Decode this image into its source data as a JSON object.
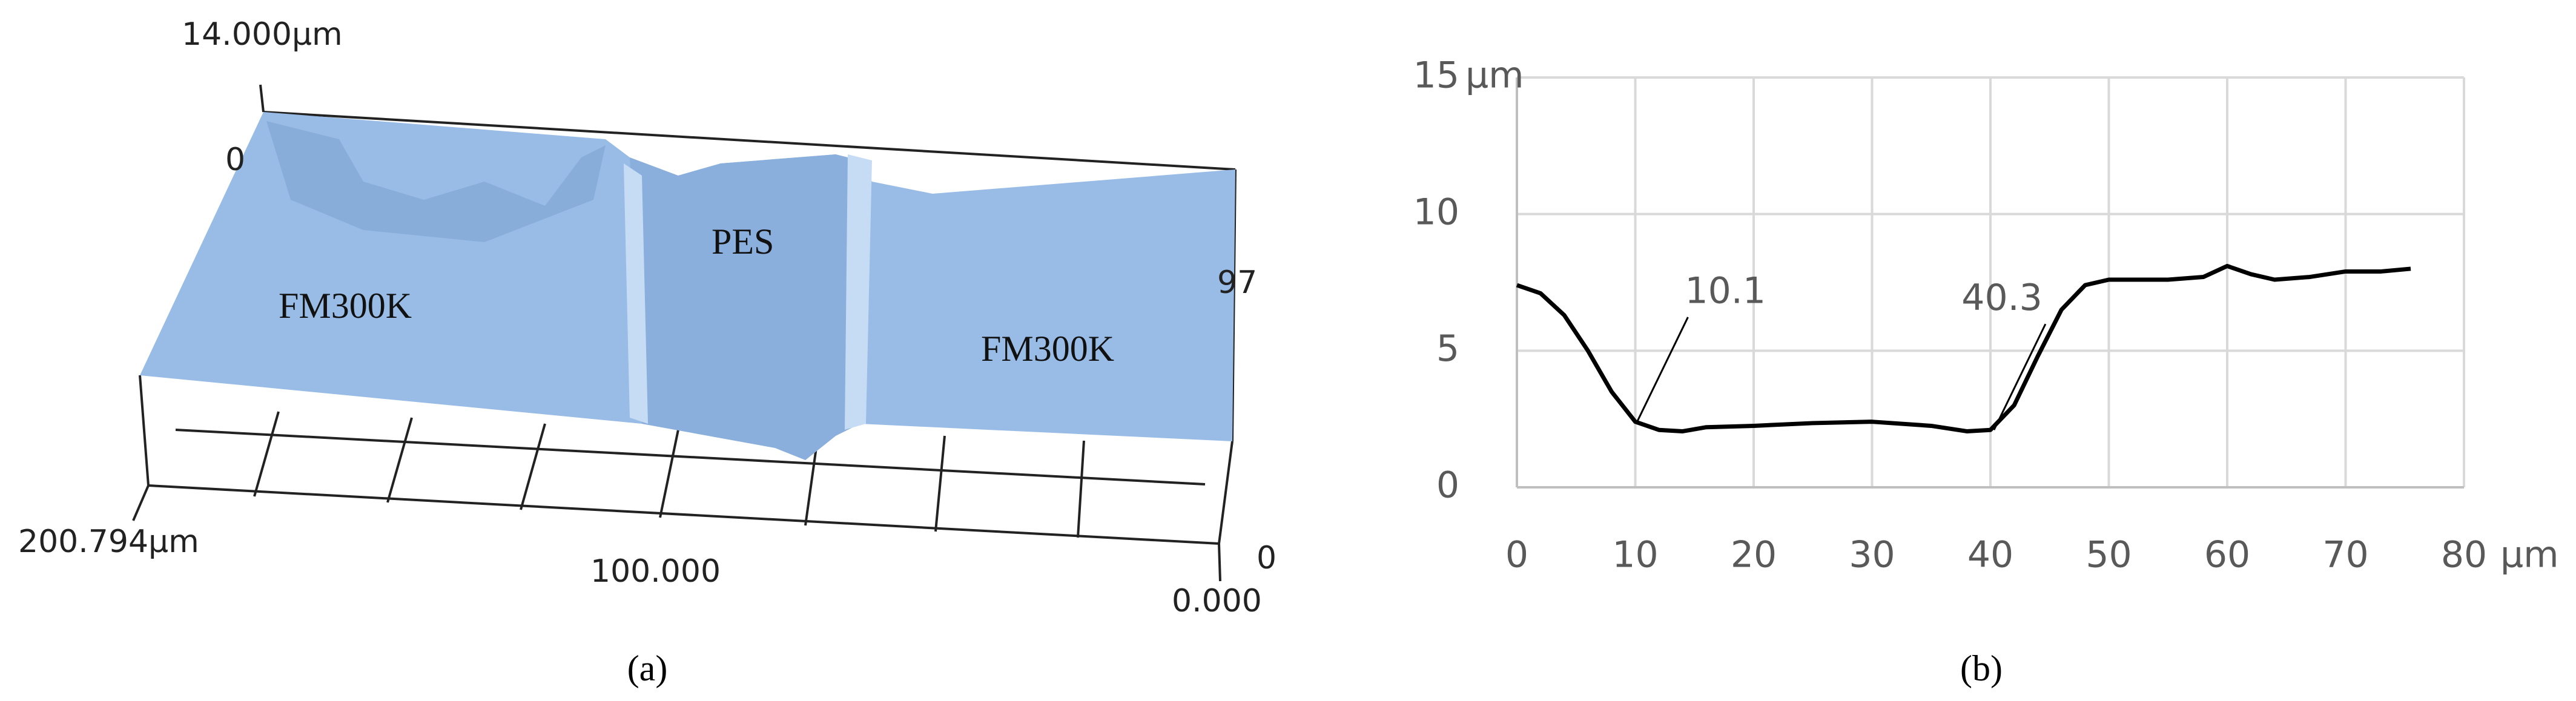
{
  "panel_a": {
    "z_max_label": "14.000μm",
    "z_zero_label": "0",
    "right_label": "97",
    "region_left": "FM300K",
    "region_center": "PES",
    "region_right": "FM300K",
    "x_max_label": "200.794μm",
    "x_mid_label": "100.000",
    "x_zero_label": "0.000",
    "y_zero_label": "0",
    "panel_label": "(a)"
  },
  "chart_data": {
    "type": "line",
    "panel_label": "(b)",
    "y_unit": "μm",
    "x_unit": "μm",
    "color": "#000000",
    "x": [
      0,
      2,
      4,
      6,
      8,
      10,
      12,
      14,
      16,
      20,
      25,
      30,
      35,
      38,
      40,
      42,
      44,
      46,
      48,
      50,
      55,
      58,
      60,
      62,
      64,
      67,
      70,
      73,
      75.5
    ],
    "values": [
      7.4,
      7.1,
      6.3,
      5.0,
      3.5,
      2.4,
      2.1,
      2.05,
      2.2,
      2.25,
      2.35,
      2.4,
      2.25,
      2.05,
      2.1,
      3.0,
      4.8,
      6.5,
      7.4,
      7.6,
      7.6,
      7.7,
      8.1,
      7.8,
      7.6,
      7.7,
      7.9,
      7.9,
      8.0
    ],
    "xlim": [
      0,
      80
    ],
    "xticks": [
      0,
      10,
      20,
      30,
      40,
      50,
      60,
      70,
      80
    ],
    "ylim": [
      0,
      15
    ],
    "yticks": [
      0,
      5,
      10,
      15
    ],
    "grid": true,
    "annotations": [
      {
        "label": "10.1",
        "x": 10.1,
        "y": 2.35
      },
      {
        "label": "40.3",
        "x": 40.3,
        "y": 2.1
      }
    ]
  }
}
